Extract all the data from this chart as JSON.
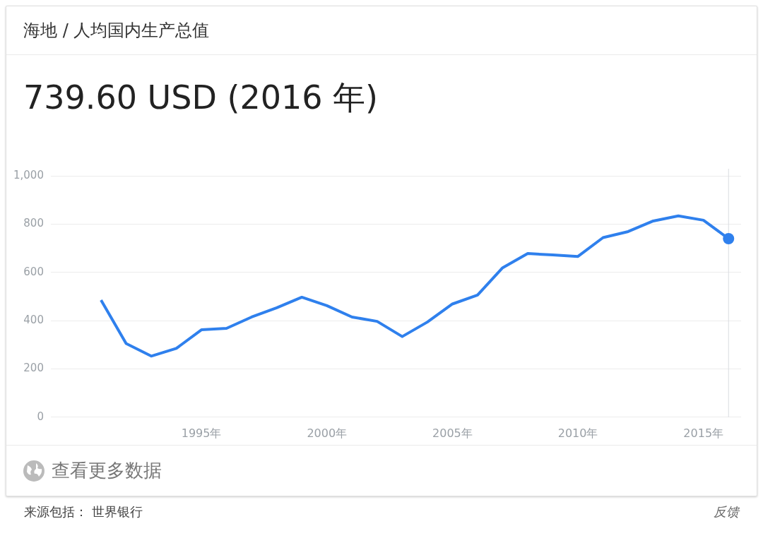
{
  "chart_data": {
    "type": "line",
    "subtitle": "海地 / 人均国内生产总值",
    "title": "739.60 USD (2016 年)",
    "x": [
      1991,
      1992,
      1993,
      1994,
      1995,
      1996,
      1997,
      1998,
      1999,
      2000,
      2001,
      2002,
      2003,
      2004,
      2005,
      2006,
      2007,
      2008,
      2009,
      2010,
      2011,
      2012,
      2013,
      2014,
      2015,
      2016
    ],
    "series": [
      {
        "color": "#2f80ed",
        "marker": "none",
        "values": [
          485,
          305,
          253,
          285,
          362,
          368,
          415,
          453,
          497,
          462,
          415,
          397,
          334,
          394,
          469,
          506,
          619,
          678,
          672,
          666,
          744,
          769,
          813,
          834,
          816,
          739.6
        ]
      },
      {
        "type": "scatter",
        "color": "#2f80ed",
        "marker": "circle",
        "x": [
          2016
        ],
        "values": [
          739.6
        ]
      }
    ],
    "xlim": [
      1989,
      2016.5
    ],
    "xticks": [
      {
        "value": 1995,
        "label": "1995年"
      },
      {
        "value": 2000,
        "label": "2000年"
      },
      {
        "value": 2005,
        "label": "2005年"
      },
      {
        "value": 2010,
        "label": "2010年"
      },
      {
        "value": 2015,
        "label": "2015年"
      }
    ],
    "ylim": [
      0,
      1000
    ],
    "yticks": [
      0,
      200,
      400,
      600,
      800,
      {
        "value": 1000,
        "label": "1,000"
      }
    ],
    "grid": "y",
    "legend": false,
    "ref_lines": [
      {
        "axis": "x",
        "value": 2016,
        "color": "#dadce0"
      }
    ],
    "annotations": [
      "查看更多数据",
      "来源包括： 世界银行",
      "反馈"
    ]
  }
}
